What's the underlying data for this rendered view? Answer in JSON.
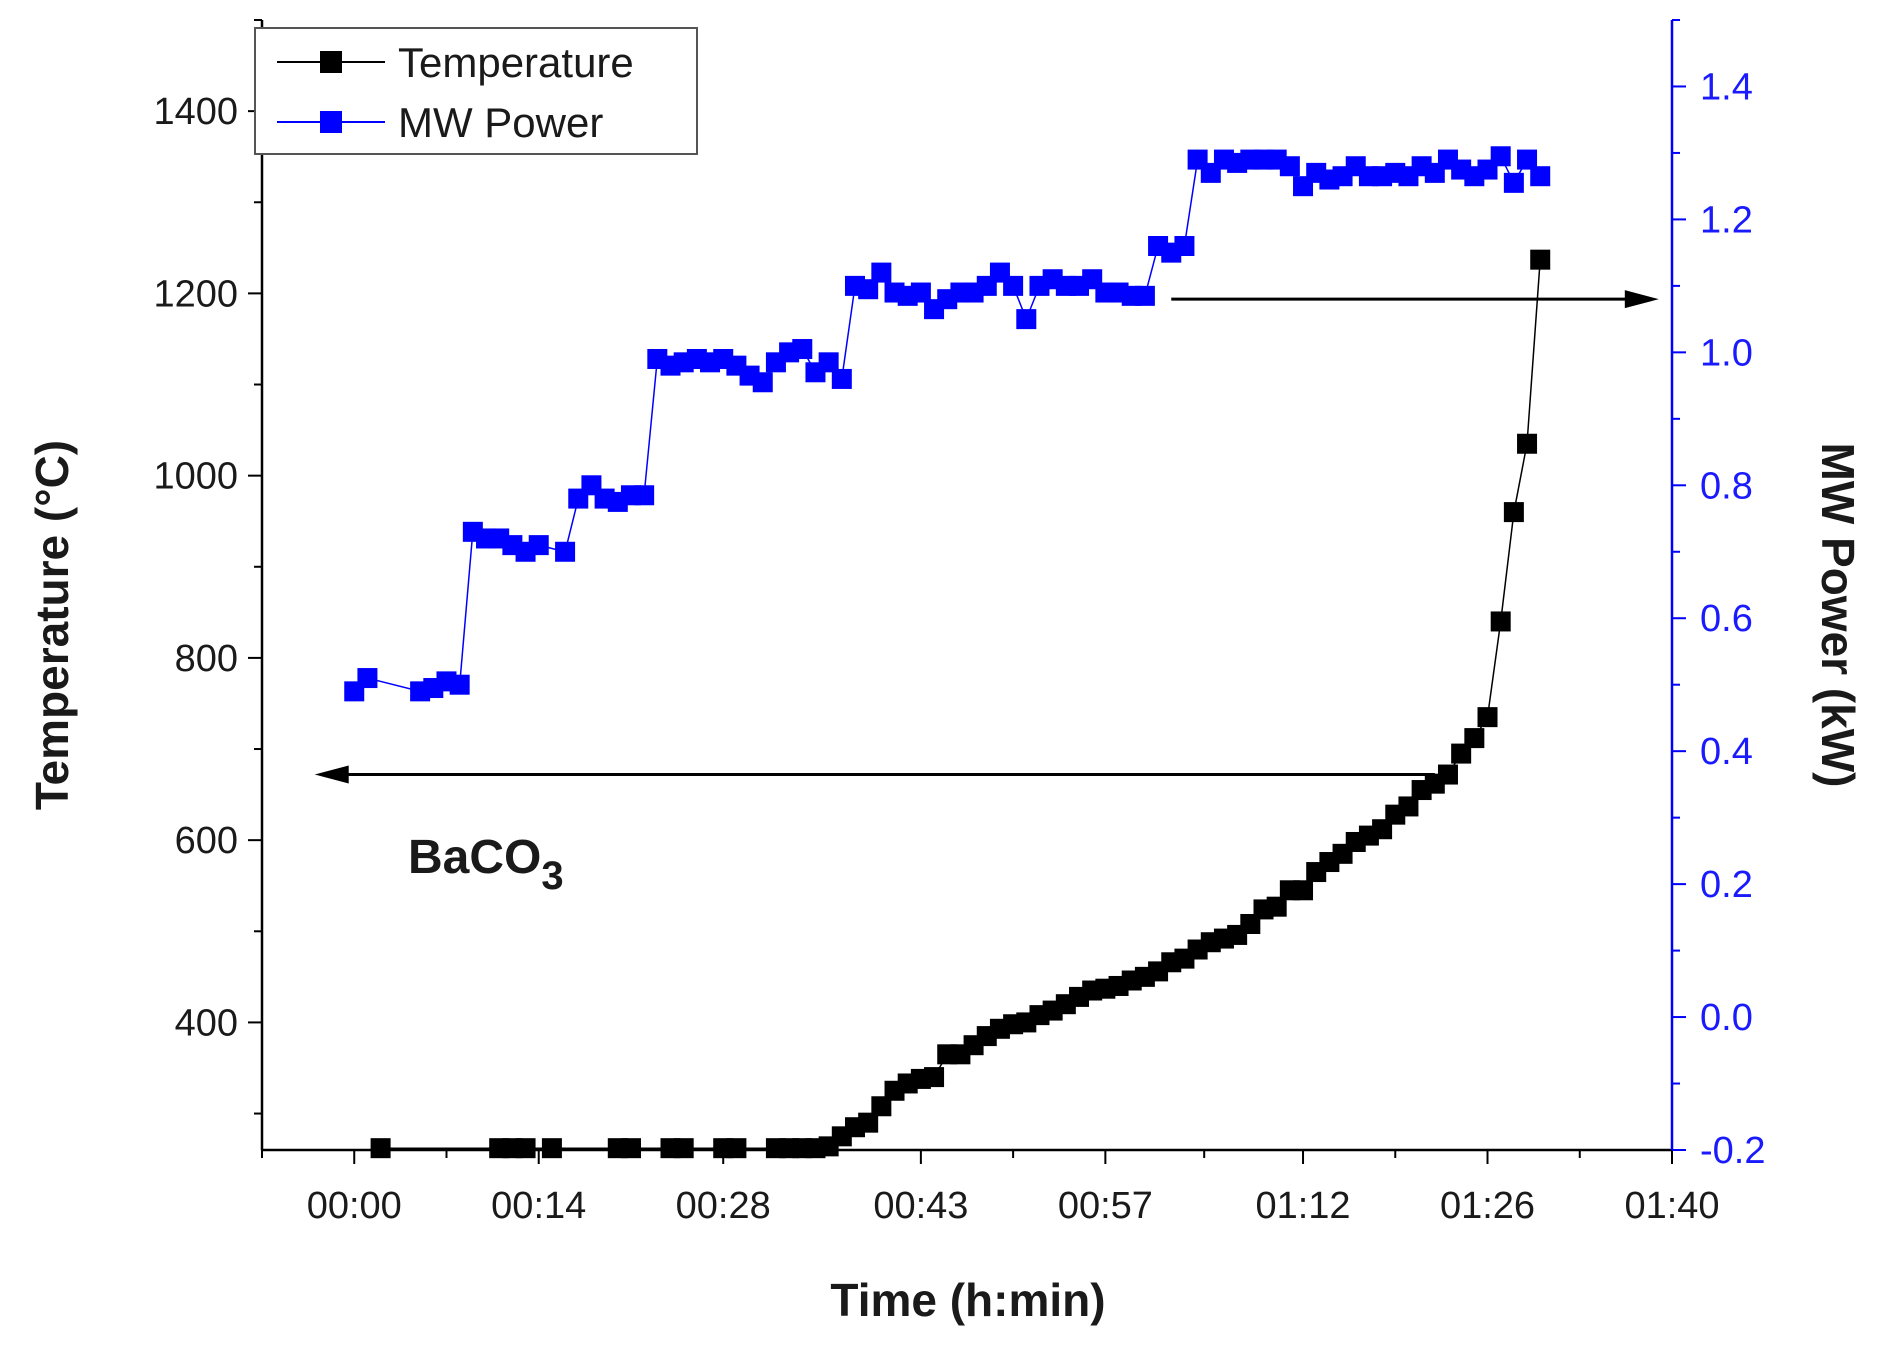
{
  "chart_data": {
    "type": "line",
    "xlabel": "Time (h:min)",
    "ylabel_left": "Temperature (°C)",
    "ylabel_right": "MW Power (kW)",
    "x_unit": "minutes",
    "xlim": [
      -7,
      100
    ],
    "ylim_left": [
      260,
      1500
    ],
    "ylim_right": [
      -0.2,
      1.5
    ],
    "x_ticks": [
      {
        "value": 0,
        "label": "00:00"
      },
      {
        "value": 14,
        "label": "00:14"
      },
      {
        "value": 28,
        "label": "00:28"
      },
      {
        "value": 43,
        "label": "00:43"
      },
      {
        "value": 57,
        "label": "00:57"
      },
      {
        "value": 72,
        "label": "01:12"
      },
      {
        "value": 86,
        "label": "01:26"
      },
      {
        "value": 100,
        "label": "01:40"
      }
    ],
    "y_ticks_left": [
      {
        "value": 400,
        "label": "400"
      },
      {
        "value": 600,
        "label": "600"
      },
      {
        "value": 800,
        "label": "800"
      },
      {
        "value": 1000,
        "label": "1000"
      },
      {
        "value": 1200,
        "label": "1200"
      },
      {
        "value": 1400,
        "label": "1400"
      }
    ],
    "y_ticks_right": [
      {
        "value": -0.2,
        "label": "-0.2"
      },
      {
        "value": 0.0,
        "label": "0.0"
      },
      {
        "value": 0.2,
        "label": "0.2"
      },
      {
        "value": 0.4,
        "label": "0.4"
      },
      {
        "value": 0.6,
        "label": "0.6"
      },
      {
        "value": 0.8,
        "label": "0.8"
      },
      {
        "value": 1.0,
        "label": "1.0"
      },
      {
        "value": 1.2,
        "label": "1.2"
      },
      {
        "value": 1.4,
        "label": "1.4"
      }
    ],
    "legend_position": "top-left",
    "grid": false,
    "series": [
      {
        "name": "Temperature",
        "axis": "left",
        "color": "#000000",
        "marker": "square",
        "points": [
          [
            2,
            262
          ],
          [
            11,
            262
          ],
          [
            12,
            262
          ],
          [
            13,
            262
          ],
          [
            15,
            262
          ],
          [
            20,
            262
          ],
          [
            21,
            262
          ],
          [
            24,
            262
          ],
          [
            25,
            262
          ],
          [
            28,
            262
          ],
          [
            29,
            262
          ],
          [
            32,
            262
          ],
          [
            33,
            262
          ],
          [
            34,
            262
          ],
          [
            35,
            262
          ],
          [
            36,
            264
          ],
          [
            37,
            275
          ],
          [
            38,
            285
          ],
          [
            39,
            290
          ],
          [
            40,
            308
          ],
          [
            41,
            325
          ],
          [
            42,
            333
          ],
          [
            43,
            338
          ],
          [
            44,
            340
          ],
          [
            45,
            365
          ],
          [
            46,
            365
          ],
          [
            47,
            375
          ],
          [
            48,
            385
          ],
          [
            49,
            393
          ],
          [
            50,
            398
          ],
          [
            51,
            400
          ],
          [
            52,
            408
          ],
          [
            53,
            413
          ],
          [
            54,
            420
          ],
          [
            55,
            428
          ],
          [
            56,
            435
          ],
          [
            57,
            437
          ],
          [
            58,
            440
          ],
          [
            59,
            446
          ],
          [
            60,
            450
          ],
          [
            61,
            456
          ],
          [
            62,
            466
          ],
          [
            63,
            470
          ],
          [
            64,
            480
          ],
          [
            65,
            488
          ],
          [
            66,
            492
          ],
          [
            67,
            496
          ],
          [
            68,
            508
          ],
          [
            69,
            524
          ],
          [
            70,
            527
          ],
          [
            71,
            545
          ],
          [
            72,
            545
          ],
          [
            73,
            565
          ],
          [
            74,
            576
          ],
          [
            75,
            585
          ],
          [
            76,
            598
          ],
          [
            77,
            605
          ],
          [
            78,
            612
          ],
          [
            79,
            628
          ],
          [
            80,
            637
          ],
          [
            81,
            655
          ],
          [
            82,
            662
          ],
          [
            83,
            672
          ],
          [
            84,
            695
          ],
          [
            85,
            712
          ],
          [
            86,
            735
          ],
          [
            87,
            840
          ],
          [
            88,
            960
          ],
          [
            89,
            1035
          ],
          [
            90,
            1237
          ]
        ]
      },
      {
        "name": "MW Power",
        "axis": "right",
        "color": "#0000ff",
        "marker": "square",
        "points": [
          [
            0,
            0.49
          ],
          [
            1,
            0.51
          ],
          [
            5,
            0.49
          ],
          [
            6,
            0.495
          ],
          [
            7,
            0.505
          ],
          [
            8,
            0.5
          ],
          [
            9,
            0.73
          ],
          [
            10,
            0.72
          ],
          [
            11,
            0.72
          ],
          [
            12,
            0.71
          ],
          [
            13,
            0.7
          ],
          [
            14,
            0.71
          ],
          [
            16,
            0.7
          ],
          [
            17,
            0.78
          ],
          [
            18,
            0.8
          ],
          [
            19,
            0.78
          ],
          [
            20,
            0.775
          ],
          [
            21,
            0.785
          ],
          [
            22,
            0.785
          ],
          [
            23,
            0.99
          ],
          [
            24,
            0.98
          ],
          [
            25,
            0.985
          ],
          [
            26,
            0.99
          ],
          [
            27,
            0.985
          ],
          [
            28,
            0.99
          ],
          [
            29,
            0.98
          ],
          [
            30,
            0.965
          ],
          [
            31,
            0.955
          ],
          [
            32,
            0.985
          ],
          [
            33,
            1.0
          ],
          [
            34,
            1.005
          ],
          [
            35,
            0.97
          ],
          [
            36,
            0.985
          ],
          [
            37,
            0.96
          ],
          [
            38,
            1.1
          ],
          [
            39,
            1.095
          ],
          [
            40,
            1.12
          ],
          [
            41,
            1.09
          ],
          [
            42,
            1.085
          ],
          [
            43,
            1.09
          ],
          [
            44,
            1.065
          ],
          [
            45,
            1.08
          ],
          [
            46,
            1.09
          ],
          [
            47,
            1.09
          ],
          [
            48,
            1.1
          ],
          [
            49,
            1.12
          ],
          [
            50,
            1.1
          ],
          [
            51,
            1.05
          ],
          [
            52,
            1.1
          ],
          [
            53,
            1.11
          ],
          [
            54,
            1.1
          ],
          [
            55,
            1.1
          ],
          [
            56,
            1.11
          ],
          [
            57,
            1.09
          ],
          [
            58,
            1.09
          ],
          [
            59,
            1.085
          ],
          [
            60,
            1.085
          ],
          [
            61,
            1.16
          ],
          [
            62,
            1.15
          ],
          [
            63,
            1.16
          ],
          [
            64,
            1.29
          ],
          [
            65,
            1.27
          ],
          [
            66,
            1.29
          ],
          [
            67,
            1.285
          ],
          [
            68,
            1.29
          ],
          [
            69,
            1.29
          ],
          [
            70,
            1.29
          ],
          [
            71,
            1.28
          ],
          [
            72,
            1.25
          ],
          [
            73,
            1.27
          ],
          [
            74,
            1.26
          ],
          [
            75,
            1.265
          ],
          [
            76,
            1.28
          ],
          [
            77,
            1.265
          ],
          [
            78,
            1.265
          ],
          [
            79,
            1.27
          ],
          [
            80,
            1.265
          ],
          [
            81,
            1.28
          ],
          [
            82,
            1.27
          ],
          [
            83,
            1.29
          ],
          [
            84,
            1.275
          ],
          [
            85,
            1.265
          ],
          [
            86,
            1.275
          ],
          [
            87,
            1.295
          ],
          [
            88,
            1.255
          ],
          [
            89,
            1.29
          ],
          [
            90,
            1.265
          ]
        ]
      }
    ],
    "annotations": [
      {
        "text": "BaCO",
        "subscript": "3"
      }
    ],
    "arrows": [
      {
        "from": {
          "x": 82,
          "y_left": 672
        },
        "to": {
          "x": -3,
          "y_left": 672
        },
        "axis": "left"
      },
      {
        "from": {
          "x": 62,
          "y_right": 1.08
        },
        "to": {
          "x": 99,
          "y_right": 1.08
        },
        "axis": "right"
      }
    ]
  }
}
